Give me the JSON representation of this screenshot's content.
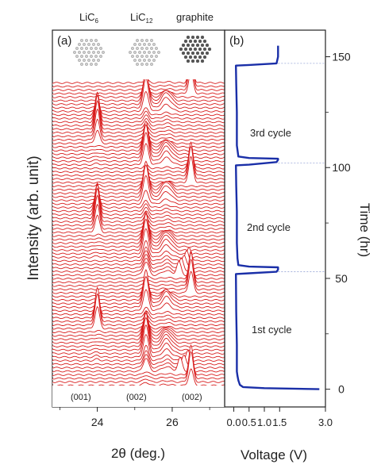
{
  "top_labels": {
    "licx6": {
      "base": "LiC",
      "sub": "6"
    },
    "licx12": {
      "base": "LiC",
      "sub": "12"
    },
    "graphite": "graphite"
  },
  "panel_a": {
    "label": "(a)",
    "ylabel": "Intensity (arb. unit)",
    "xlabel": "2θ (deg.)",
    "peak_labels": [
      "(001)",
      "(002)",
      "(002)"
    ]
  },
  "panel_b": {
    "label": "(b)",
    "xlabel": "Voltage (V)",
    "ylabel": "Time (hr)",
    "cycle_labels": [
      "3rd cycle",
      "2nd cycle",
      "1st cycle"
    ]
  },
  "chart_data": [
    {
      "type": "line",
      "panel": "(a)",
      "title": "",
      "xlabel": "2θ (deg.)",
      "ylabel": "Intensity (arb. unit)",
      "x_ticks": [
        24,
        26
      ],
      "xlim": [
        22.8,
        27.4
      ],
      "peak_positions": {
        "LiC6 (001)": 24.0,
        "LiC12 (002)": 25.3,
        "graphite (002)": 26.5
      },
      "grid": false,
      "colors": {
        "pattern": "#d81b1b",
        "fill": "#ffffff"
      }
    },
    {
      "type": "line",
      "panel": "(b)",
      "title": "",
      "xlabel": "Voltage (V)",
      "ylabel": "Time (hr)",
      "xlim": [
        -0.3,
        3.0
      ],
      "ylim": [
        -8,
        162
      ],
      "x_ticks": [
        0.0,
        0.5,
        1.0,
        1.5,
        3.0
      ],
      "y_ticks": [
        0,
        50,
        100,
        150
      ],
      "series": [
        {
          "color": "#1a2fa8",
          "points": [
            [
              2.8,
              0
            ],
            [
              1.0,
              0.5
            ],
            [
              0.3,
              1
            ],
            [
              0.2,
              2
            ],
            [
              0.15,
              4
            ],
            [
              0.12,
              6
            ],
            [
              0.1,
              8
            ],
            [
              0.1,
              20
            ],
            [
              0.08,
              35
            ],
            [
              0.07,
              52
            ],
            [
              0.5,
              52.3
            ],
            [
              1.4,
              53
            ],
            [
              1.45,
              54
            ],
            [
              1.45,
              55
            ],
            [
              0.5,
              55.3
            ],
            [
              0.15,
              56
            ],
            [
              0.12,
              59
            ],
            [
              0.1,
              66
            ],
            [
              0.1,
              80
            ],
            [
              0.08,
              92
            ],
            [
              0.07,
              101
            ],
            [
              0.5,
              101.3
            ],
            [
              1.4,
              102.5
            ],
            [
              1.45,
              103.5
            ],
            [
              1.45,
              104
            ],
            [
              0.5,
              104.3
            ],
            [
              0.15,
              105
            ],
            [
              0.1,
              110
            ],
            [
              0.1,
              125
            ],
            [
              0.08,
              138
            ],
            [
              0.07,
              146
            ],
            [
              0.5,
              146.3
            ],
            [
              1.4,
              147
            ],
            [
              1.45,
              150
            ],
            [
              1.45,
              155
            ]
          ]
        }
      ]
    }
  ]
}
